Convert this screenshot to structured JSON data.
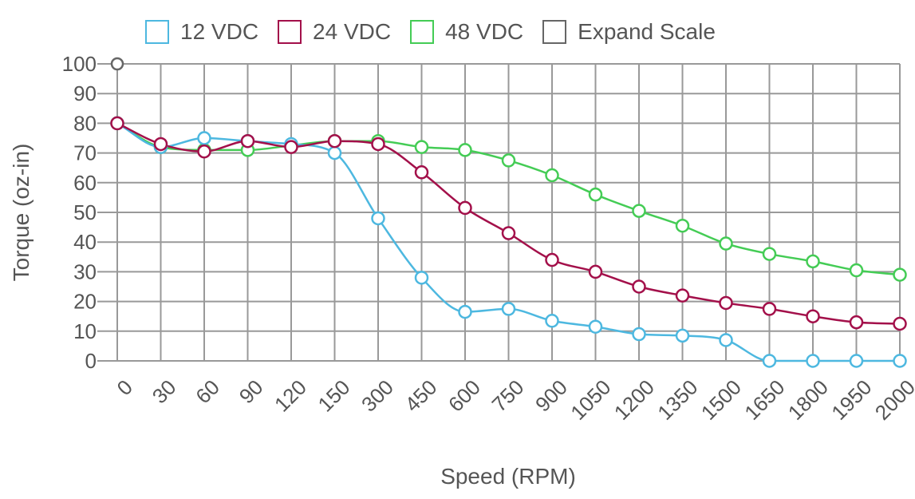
{
  "chart_data": {
    "type": "line",
    "xlabel": "Speed (RPM)",
    "ylabel": "Torque (oz-in)",
    "categories": [
      "0",
      "30",
      "60",
      "90",
      "120",
      "150",
      "300",
      "450",
      "600",
      "750",
      "900",
      "1050",
      "1200",
      "1350",
      "1500",
      "1650",
      "1800",
      "1950",
      "2000"
    ],
    "ylim": [
      0,
      100
    ],
    "yticks": [
      0,
      10,
      20,
      30,
      40,
      50,
      60,
      70,
      80,
      90,
      100
    ],
    "grid": true,
    "legend_position": "top",
    "extra_point": {
      "x_index": 0,
      "y": 100
    },
    "legend": [
      {
        "label": "12 VDC",
        "color": "#4db8e0"
      },
      {
        "label": "24 VDC",
        "color": "#a3104a"
      },
      {
        "label": "48 VDC",
        "color": "#44cc55"
      },
      {
        "label": "Expand Scale",
        "color": "#666666"
      }
    ],
    "series": [
      {
        "name": "12 VDC",
        "color": "#4db8e0",
        "values": [
          80,
          72,
          75,
          74,
          73,
          70,
          48,
          28,
          16.5,
          17.5,
          13.5,
          11.5,
          9,
          8.5,
          7,
          0,
          0,
          0,
          0
        ]
      },
      {
        "name": "24 VDC",
        "color": "#a3104a",
        "values": [
          80,
          73,
          70.5,
          74,
          72,
          74,
          73,
          63.5,
          51.5,
          43,
          34,
          30,
          25,
          22,
          19.5,
          17.5,
          15,
          13,
          12.5
        ]
      },
      {
        "name": "48 VDC",
        "color": "#44cc55",
        "values": [
          80,
          72,
          71,
          71,
          72.5,
          74,
          74,
          72,
          71,
          67.5,
          62.5,
          56,
          50.5,
          45.5,
          39.5,
          36,
          33.5,
          30.5,
          29
        ]
      }
    ]
  }
}
